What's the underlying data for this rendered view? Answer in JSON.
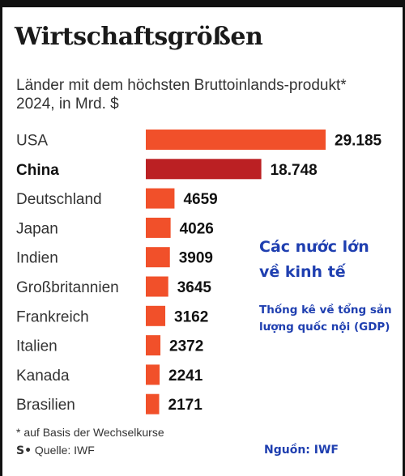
{
  "title": "Wirtschaftsgrößen",
  "subtitle": "Länder mit dem höchsten Bruttoinlands-produkt* 2024, in Mrd. $",
  "footnote": "* auf Basis der Wechselkurse",
  "source_mark": "S•",
  "source": "Quelle: IWF",
  "annotations": {
    "heading_line1": "Các nước lớn",
    "heading_line2": "về kinh tế",
    "description": "Thống kê về tổng sản lượng quốc nội (GDP)",
    "source_vi": "Nguồn: IWF"
  },
  "colors": {
    "bar": "#f1502a",
    "highlight_bar": "#bb2023",
    "annotation": "#1f3fb0"
  },
  "chart_data": {
    "type": "bar",
    "orientation": "horizontal",
    "title": "Wirtschaftsgrößen",
    "subtitle": "Länder mit dem höchsten Bruttoinlands-produkt* 2024, in Mrd. $",
    "categories": [
      "USA",
      "China",
      "Deutschland",
      "Japan",
      "Indien",
      "Großbritannien",
      "Frankreich",
      "Italien",
      "Kanada",
      "Brasilien"
    ],
    "values": [
      29185,
      18748,
      4659,
      4026,
      3909,
      3645,
      3162,
      2372,
      2241,
      2171
    ],
    "value_labels": [
      "29.185",
      "18.748",
      "4659",
      "4026",
      "3909",
      "3645",
      "3162",
      "2372",
      "2241",
      "2171"
    ],
    "highlighted_category": "China",
    "xlim": [
      0,
      29185
    ],
    "grid": false,
    "legend": "none"
  }
}
